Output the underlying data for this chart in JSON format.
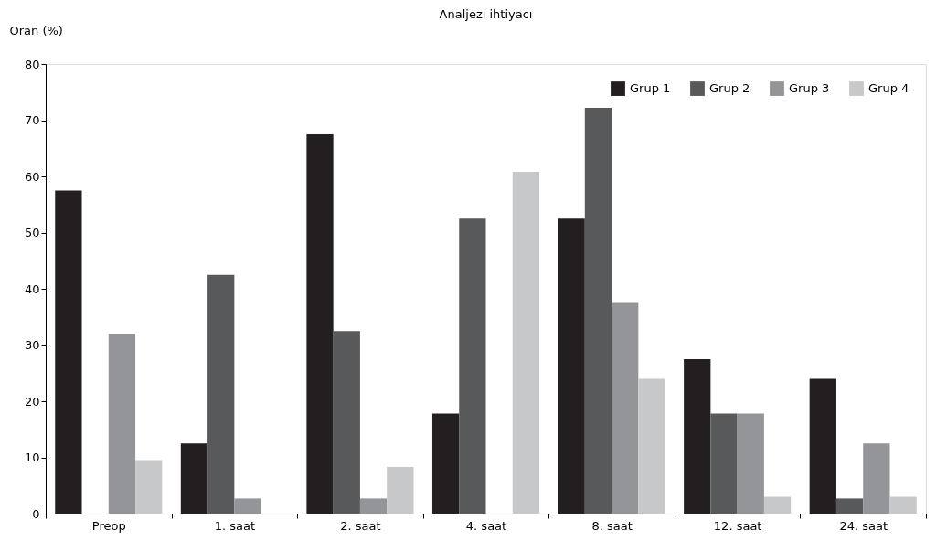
{
  "chart_data": {
    "type": "bar",
    "title": "Analjezi ihtiyacı",
    "ylabel": "Oran (%)",
    "categories": [
      "Preop",
      "1. saat",
      "2. saat",
      "4. saat",
      "8. saat",
      "12. saat",
      "24. saat"
    ],
    "series": [
      {
        "name": "Grup 1",
        "color": "#231f20",
        "values": [
          57.5,
          12.5,
          67.5,
          17.8,
          52.5,
          27.5,
          24
        ]
      },
      {
        "name": "Grup 2",
        "color": "#58595b",
        "values": [
          0,
          42.5,
          32.5,
          52.5,
          72.2,
          17.8,
          2.7
        ]
      },
      {
        "name": "Grup 3",
        "color": "#939598",
        "values": [
          32,
          2.7,
          2.7,
          0,
          37.5,
          17.8,
          12.5
        ]
      },
      {
        "name": "Grup 4",
        "color": "#c7c8ca",
        "values": [
          9.5,
          0,
          8.3,
          60.8,
          24,
          3,
          3
        ]
      }
    ],
    "ylim": [
      0,
      80
    ],
    "yticks": [
      0,
      10,
      20,
      30,
      40,
      50,
      60,
      70,
      80
    ],
    "grid": false,
    "legend": "top right"
  }
}
